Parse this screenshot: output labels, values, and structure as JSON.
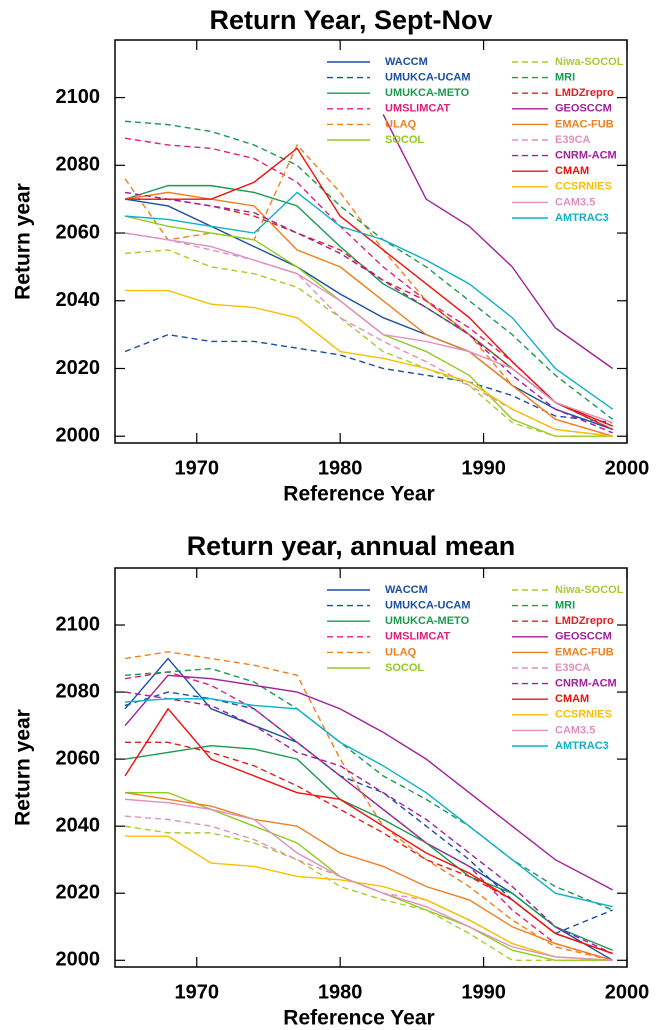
{
  "chart_data": [
    {
      "type": "line",
      "title": "Return Year, Sept-Nov",
      "x_label": "Reference Year",
      "y_label": "Return year",
      "x": [
        1965,
        1968,
        1971,
        1974,
        1977,
        1980,
        1983,
        1986,
        1989,
        1992,
        1995,
        1999
      ],
      "xlim": [
        1964.3,
        2000
      ],
      "ylim": [
        1998,
        2117
      ],
      "xticks": [
        1970,
        1980,
        1990,
        2000
      ],
      "yticks": [
        2000,
        2020,
        2040,
        2060,
        2080,
        2100
      ],
      "legend": "top-right",
      "series": [
        {
          "name": "WACCM",
          "color": "#1a4fa0",
          "dashed": false,
          "values": [
            2070,
            2068,
            2062,
            2056,
            2050,
            2042,
            2035,
            2030,
            2025,
            2015,
            2008,
            2002
          ]
        },
        {
          "name": "UMUKCA-UCAM",
          "color": "#1a4fa0",
          "dashed": true,
          "values": [
            2025,
            2030,
            2028,
            2028,
            2026,
            2024,
            2020,
            2018,
            2016,
            2012,
            2006,
            2004
          ]
        },
        {
          "name": "UMUKCA-METO",
          "color": "#1a9a50",
          "dashed": false,
          "values": [
            2070,
            2074,
            2074,
            2072,
            2068,
            2056,
            2045,
            2038,
            2030,
            2020,
            2010,
            2002
          ]
        },
        {
          "name": "UMSLIMCAT",
          "color": "#e0207a",
          "dashed": true,
          "values": [
            2088,
            2086,
            2085,
            2082,
            2075,
            2062,
            2050,
            2040,
            2032,
            2022,
            2010,
            2002
          ]
        },
        {
          "name": "ULAQ",
          "color": "#f08020",
          "dashed": true,
          "values": [
            2076,
            2058,
            2060,
            2058,
            2086,
            2072,
            2055,
            2040,
            2030,
            2015,
            2005,
            2000
          ]
        },
        {
          "name": "SOCOL",
          "color": "#90cc20",
          "dashed": false,
          "values": [
            2065,
            2062,
            2060,
            2058,
            2050,
            2040,
            2030,
            2025,
            2018,
            2005,
            2000,
            2000
          ]
        },
        {
          "name": "Niwa-SOCOL",
          "color": "#a8cc30",
          "dashed": true,
          "values": [
            2054,
            2055,
            2050,
            2048,
            2044,
            2035,
            2025,
            2020,
            2015,
            2004,
            2000,
            2000
          ]
        },
        {
          "name": "MRI",
          "color": "#1a9a50",
          "dashed": true,
          "values": [
            2093,
            2092,
            2090,
            2086,
            2080,
            2068,
            2058,
            2050,
            2040,
            2030,
            2018,
            2005
          ]
        },
        {
          "name": "LMDZrepro",
          "color": "#e02020",
          "dashed": true,
          "values": [
            2070,
            2070,
            2068,
            2065,
            2060,
            2055,
            2046,
            2040,
            2030,
            2020,
            2010,
            2002
          ]
        },
        {
          "name": "GEOSCCM",
          "color": "#a0209a",
          "dashed": false,
          "values": [
            null,
            null,
            null,
            null,
            null,
            null,
            2095,
            2070,
            2062,
            2050,
            2032,
            2020
          ]
        },
        {
          "name": "EMAC-FUB",
          "color": "#f08020",
          "dashed": false,
          "values": [
            2070,
            2072,
            2070,
            2068,
            2055,
            2050,
            2040,
            2030,
            2025,
            2015,
            2005,
            2000
          ]
        },
        {
          "name": "E39CA",
          "color": "#e090c0",
          "dashed": true,
          "values": [
            2060,
            2058,
            2055,
            2052,
            2048,
            2035,
            2028,
            2022,
            2015,
            2008,
            2002,
            2000
          ]
        },
        {
          "name": "CNRM-ACM",
          "color": "#a0209a",
          "dashed": true,
          "values": [
            2072,
            2070,
            2068,
            2066,
            2060,
            2054,
            2046,
            2038,
            2030,
            2018,
            2008,
            2001
          ]
        },
        {
          "name": "CMAM",
          "color": "#f01010",
          "dashed": false,
          "values": [
            2070,
            2070,
            2070,
            2075,
            2085,
            2065,
            2055,
            2045,
            2035,
            2022,
            2010,
            2003
          ]
        },
        {
          "name": "CCSRNIES",
          "color": "#f8c000",
          "dashed": false,
          "values": [
            2043,
            2043,
            2039,
            2038,
            2035,
            2025,
            2023,
            2020,
            2016,
            2008,
            2002,
            2000
          ]
        },
        {
          "name": "CAM3.5",
          "color": "#e090c0",
          "dashed": false,
          "values": [
            2060,
            2058,
            2056,
            2052,
            2048,
            2040,
            2030,
            2028,
            2025,
            2020,
            2010,
            2004
          ]
        },
        {
          "name": "AMTRAC3",
          "color": "#10b0c8",
          "dashed": false,
          "values": [
            2065,
            2064,
            2062,
            2060,
            2072,
            2062,
            2058,
            2052,
            2045,
            2035,
            2020,
            2008
          ]
        }
      ]
    },
    {
      "type": "line",
      "title": "Return year, annual mean",
      "x_label": "Reference Year",
      "y_label": "Return year",
      "x": [
        1965,
        1968,
        1971,
        1974,
        1977,
        1980,
        1983,
        1986,
        1989,
        1992,
        1995,
        1999
      ],
      "xlim": [
        1964.3,
        2000
      ],
      "ylim": [
        1998,
        2117
      ],
      "xticks": [
        1970,
        1980,
        1990,
        2000
      ],
      "yticks": [
        2000,
        2020,
        2040,
        2060,
        2080,
        2100
      ],
      "legend": "top-right",
      "series": [
        {
          "name": "WACCM",
          "color": "#1a4fa0",
          "dashed": false,
          "values": [
            2075,
            2090,
            2075,
            2070,
            2065,
            2055,
            2045,
            2035,
            2028,
            2020,
            2010,
            2000
          ]
        },
        {
          "name": "UMUKCA-UCAM",
          "color": "#1a4fa0",
          "dashed": true,
          "values": [
            2076,
            2080,
            2078,
            2075,
            2065,
            2055,
            2050,
            2040,
            2030,
            2018,
            2008,
            2015
          ]
        },
        {
          "name": "UMUKCA-METO",
          "color": "#1a9a50",
          "dashed": false,
          "values": [
            2060,
            2062,
            2064,
            2063,
            2060,
            2048,
            2042,
            2035,
            2025,
            2020,
            2010,
            2003
          ]
        },
        {
          "name": "UMSLIMCAT",
          "color": "#e0207a",
          "dashed": true,
          "values": [
            2084,
            2086,
            2082,
            2075,
            2065,
            2055,
            2045,
            2035,
            2028,
            2015,
            2005,
            2000
          ]
        },
        {
          "name": "ULAQ",
          "color": "#f08020",
          "dashed": true,
          "values": [
            2090,
            2092,
            2090,
            2088,
            2085,
            2060,
            2040,
            2030,
            2022,
            2012,
            2004,
            2000
          ]
        },
        {
          "name": "SOCOL",
          "color": "#90cc20",
          "dashed": false,
          "values": [
            2050,
            2050,
            2045,
            2040,
            2035,
            2025,
            2020,
            2015,
            2010,
            2003,
            2000,
            2000
          ]
        },
        {
          "name": "Niwa-SOCOL",
          "color": "#a8cc30",
          "dashed": true,
          "values": [
            2040,
            2038,
            2038,
            2035,
            2030,
            2022,
            2018,
            2015,
            2008,
            2000,
            2000,
            2000
          ]
        },
        {
          "name": "MRI",
          "color": "#1a9a50",
          "dashed": true,
          "values": [
            2085,
            2086,
            2087,
            2083,
            2075,
            2065,
            2055,
            2048,
            2040,
            2030,
            2022,
            2015
          ]
        },
        {
          "name": "LMDZrepro",
          "color": "#e02020",
          "dashed": true,
          "values": [
            2065,
            2065,
            2062,
            2058,
            2052,
            2045,
            2038,
            2030,
            2025,
            2018,
            2008,
            2002
          ]
        },
        {
          "name": "GEOSCCM",
          "color": "#a0209a",
          "dashed": false,
          "values": [
            2070,
            2085,
            2084,
            2082,
            2080,
            2075,
            2068,
            2060,
            2050,
            2040,
            2030,
            2021
          ]
        },
        {
          "name": "EMAC-FUB",
          "color": "#f08020",
          "dashed": false,
          "values": [
            2050,
            2048,
            2046,
            2042,
            2040,
            2032,
            2028,
            2022,
            2018,
            2010,
            2005,
            2000
          ]
        },
        {
          "name": "E39CA",
          "color": "#e090c0",
          "dashed": true,
          "values": [
            2043,
            2042,
            2040,
            2036,
            2030,
            2025,
            2020,
            2018,
            2012,
            2005,
            2001,
            2000
          ]
        },
        {
          "name": "CNRM-ACM",
          "color": "#a0209a",
          "dashed": true,
          "values": [
            2080,
            2078,
            2076,
            2070,
            2062,
            2058,
            2050,
            2042,
            2032,
            2022,
            2010,
            2002
          ]
        },
        {
          "name": "CMAM",
          "color": "#f01010",
          "dashed": false,
          "values": [
            2055,
            2075,
            2060,
            2055,
            2050,
            2048,
            2040,
            2032,
            2026,
            2018,
            2008,
            2002
          ]
        },
        {
          "name": "CCSRNIES",
          "color": "#f8c000",
          "dashed": false,
          "values": [
            2037,
            2037,
            2029,
            2028,
            2025,
            2024,
            2022,
            2018,
            2012,
            2005,
            2001,
            2000
          ]
        },
        {
          "name": "CAM3.5",
          "color": "#e090c0",
          "dashed": false,
          "values": [
            2048,
            2047,
            2045,
            2042,
            2032,
            2025,
            2020,
            2016,
            2010,
            2004,
            2001,
            2000
          ]
        },
        {
          "name": "AMTRAC3",
          "color": "#10b0c8",
          "dashed": false,
          "values": [
            2077,
            2078,
            2078,
            2076,
            2075,
            2065,
            2058,
            2050,
            2040,
            2030,
            2020,
            2016
          ]
        }
      ]
    }
  ]
}
